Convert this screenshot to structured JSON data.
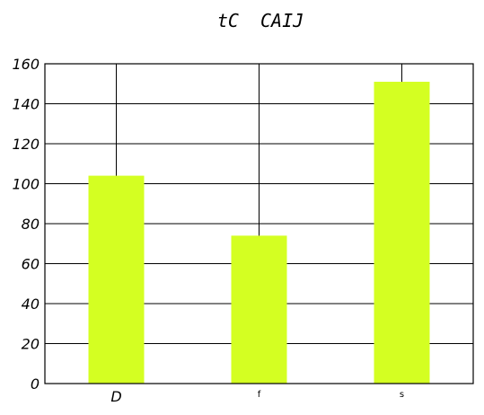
{
  "chart_data": {
    "type": "bar",
    "title": "tC  CAIJ",
    "categories": [
      "D",
      "f",
      "s"
    ],
    "values": [
      104,
      74,
      151
    ],
    "ylim": [
      0,
      160
    ],
    "yticks": [
      0,
      20,
      40,
      60,
      80,
      100,
      120,
      140,
      160
    ],
    "grid": true,
    "bar_color": "#d4ff22"
  }
}
